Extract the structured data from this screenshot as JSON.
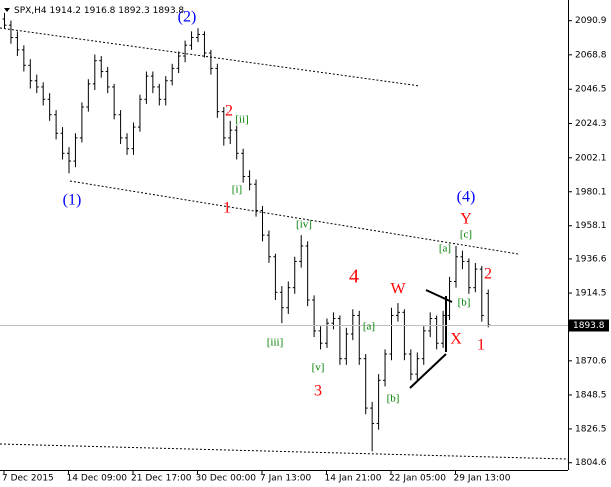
{
  "chart_data": {
    "type": "ohlc",
    "title": "SPX,H4",
    "categories": [
      "7 Dec 2015",
      null,
      null,
      null,
      null,
      null,
      null,
      null,
      null,
      null,
      "14 Dec 09:00",
      null,
      null,
      null,
      null,
      null,
      null,
      null,
      null,
      null,
      "21 Dec 17:00",
      null,
      null,
      null,
      null,
      null,
      null,
      null,
      null,
      null,
      "30 Dec 00:00",
      null,
      null,
      null,
      null,
      null,
      null,
      null,
      null,
      null,
      "7 Jan 13:00",
      null,
      null,
      null,
      null,
      null,
      null,
      null,
      null,
      null,
      "14 Jan 21:00",
      null,
      null,
      null,
      null,
      null,
      null,
      null,
      null,
      null,
      "22 Jan 05:00",
      null,
      null,
      null,
      null,
      null,
      null,
      null,
      null,
      null,
      "29 Jan 13:00",
      null,
      null,
      null,
      null,
      null
    ],
    "open": [
      2092,
      2088,
      2080,
      2072,
      2062,
      2052,
      2048,
      2040,
      2030,
      2018,
      2005,
      2000,
      2015,
      2035,
      2050,
      2065,
      2058,
      2048,
      2030,
      2015,
      2008,
      2022,
      2040,
      2055,
      2048,
      2040,
      2052,
      2060,
      2068,
      2075,
      2080,
      2082,
      2070,
      2060,
      2032,
      2015,
      2020,
      2005,
      1990,
      1985,
      1968,
      1952,
      1938,
      1915,
      1905,
      1918,
      1935,
      1945,
      1910,
      1890,
      1882,
      1895,
      1898,
      1872,
      1888,
      1900,
      1872,
      1840,
      1830,
      1858,
      1875,
      1900,
      1902,
      1875,
      1862,
      1872,
      1890,
      1898,
      1882,
      1900,
      1922,
      1938,
      1935,
      1918,
      1930,
      1914.2
    ],
    "high": [
      2096,
      2091,
      2084,
      2075,
      2066,
      2056,
      2051,
      2044,
      2033,
      2022,
      2009,
      2018,
      2038,
      2053,
      2069,
      2068,
      2061,
      2050,
      2033,
      2018,
      2025,
      2043,
      2058,
      2058,
      2050,
      2055,
      2063,
      2071,
      2078,
      2084,
      2086,
      2084,
      2072,
      2063,
      2035,
      2026,
      2023,
      2008,
      1994,
      1988,
      1971,
      1955,
      1940,
      1919,
      1922,
      1938,
      1952,
      1948,
      1913,
      1893,
      1898,
      1902,
      1900,
      1892,
      1904,
      1903,
      1875,
      1844,
      1862,
      1878,
      1905,
      1908,
      1904,
      1878,
      1876,
      1893,
      1902,
      1900,
      1903,
      1925,
      1945,
      1942,
      1937,
      1934,
      1932,
      1916.8
    ],
    "low": [
      2086,
      2076,
      2068,
      2058,
      2047,
      2044,
      2036,
      2026,
      2014,
      2001,
      1992,
      1996,
      2012,
      2032,
      2046,
      2054,
      2044,
      2027,
      2011,
      2004,
      2004,
      2019,
      2037,
      2044,
      2036,
      2036,
      2049,
      2057,
      2064,
      2072,
      2077,
      2067,
      2056,
      2028,
      2010,
      2011,
      2001,
      1986,
      1981,
      1964,
      1948,
      1934,
      1910,
      1895,
      1901,
      1914,
      1931,
      1906,
      1886,
      1878,
      1879,
      1891,
      1868,
      1868,
      1884,
      1868,
      1836,
      1812,
      1826,
      1854,
      1871,
      1896,
      1871,
      1858,
      1858,
      1868,
      1886,
      1878,
      1879,
      1897,
      1918,
      1930,
      1914,
      1915,
      1896,
      1892.3
    ],
    "close": [
      2088,
      2080,
      2072,
      2062,
      2052,
      2048,
      2040,
      2030,
      2018,
      2005,
      2000,
      2015,
      2035,
      2050,
      2065,
      2058,
      2048,
      2030,
      2015,
      2008,
      2022,
      2040,
      2055,
      2048,
      2040,
      2052,
      2060,
      2068,
      2075,
      2080,
      2082,
      2070,
      2060,
      2032,
      2015,
      2020,
      2005,
      1990,
      1985,
      1968,
      1952,
      1938,
      1915,
      1905,
      1918,
      1935,
      1945,
      1910,
      1890,
      1882,
      1895,
      1898,
      1872,
      1888,
      1900,
      1872,
      1840,
      1830,
      1858,
      1875,
      1900,
      1902,
      1875,
      1862,
      1872,
      1890,
      1898,
      1882,
      1900,
      1922,
      1938,
      1935,
      1918,
      1930,
      1900,
      1893.8
    ],
    "color": "#000000",
    "ylim": [
      1799.9,
      2104.3
    ],
    "yticks": [
      2090.9,
      2068.8,
      2046.5,
      2024.3,
      2002.1,
      1980.1,
      1958.1,
      1936.6,
      1914.5,
      1870.6,
      1848.5,
      1826.5,
      1804.6
    ],
    "annotations": [
      {
        "text": "(2)",
        "color": "#0000ff"
      },
      {
        "text": "(1)",
        "color": "#0000ff"
      },
      {
        "text": "(4)",
        "color": "#0000ff"
      },
      {
        "text": "2",
        "color": "#ff0000"
      },
      {
        "text": "[ii]",
        "color": "#008000"
      },
      {
        "text": "[i]",
        "color": "#008000"
      },
      {
        "text": "1",
        "color": "#ff0000"
      },
      {
        "text": "[iv]",
        "color": "#008000"
      },
      {
        "text": "[iii]",
        "color": "#008000"
      },
      {
        "text": "[v]",
        "color": "#008000"
      },
      {
        "text": "3",
        "color": "#ff0000"
      },
      {
        "text": "4",
        "color": "#ff0000"
      },
      {
        "text": "W",
        "color": "#ff0000"
      },
      {
        "text": "[a]",
        "color": "#008000"
      },
      {
        "text": "[b]",
        "color": "#008000"
      },
      {
        "text": "[a]",
        "color": "#008000"
      },
      {
        "text": "Y",
        "color": "#ff0000"
      },
      {
        "text": "[c]",
        "color": "#008000"
      },
      {
        "text": "2",
        "color": "#ff0000"
      },
      {
        "text": "[b]",
        "color": "#008000"
      },
      {
        "text": "X",
        "color": "#ff0000"
      },
      {
        "text": "1",
        "color": "#ff0000"
      }
    ]
  }
}
